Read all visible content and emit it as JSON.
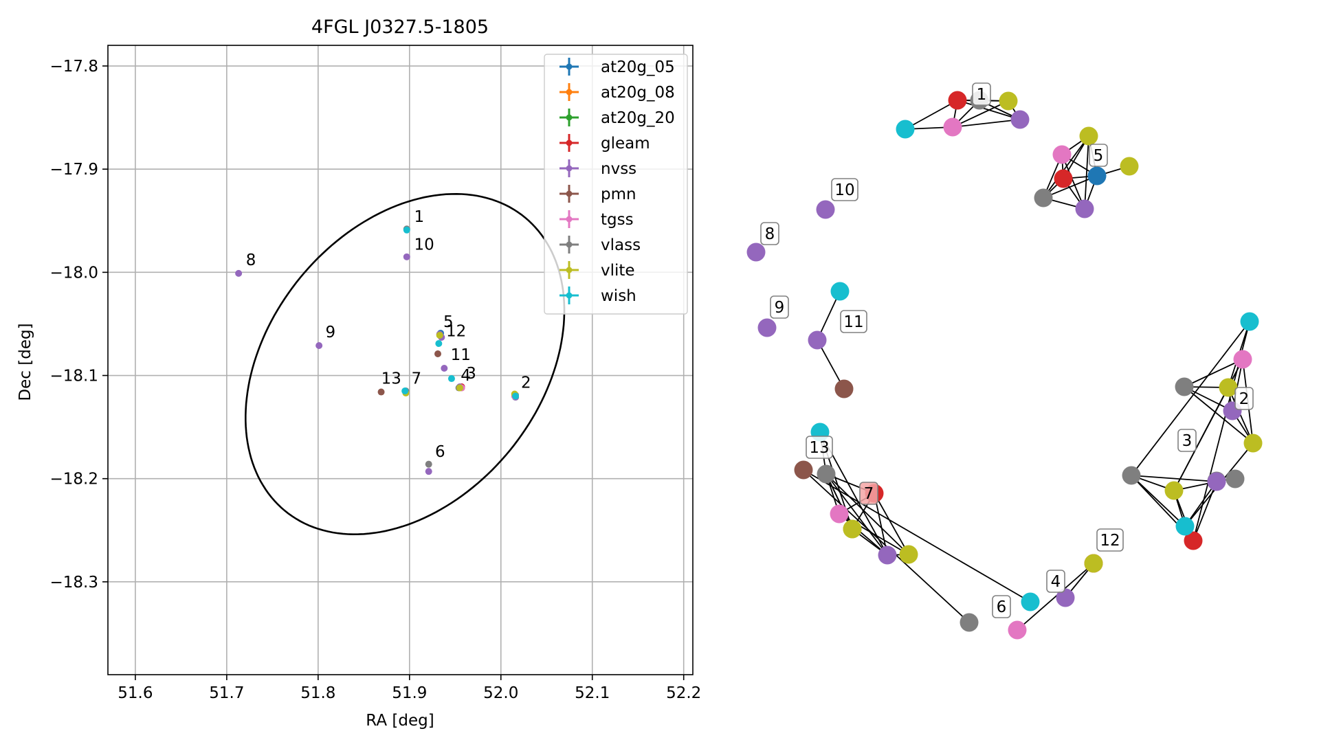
{
  "chart_data": {
    "type": "scatter",
    "title": "4FGL J0327.5-1805",
    "xlabel": "RA [deg]",
    "ylabel": "Dec [deg]",
    "xlim": [
      51.57,
      52.21
    ],
    "ylim": [
      -18.39,
      -17.78
    ],
    "xticks": [
      51.6,
      51.7,
      51.8,
      51.9,
      52.0,
      52.1,
      52.2
    ],
    "yticks": [
      -17.8,
      -17.9,
      -18.0,
      -18.1,
      -18.2,
      -18.3
    ],
    "xtick_labels": [
      "51.6",
      "51.7",
      "51.8",
      "51.9",
      "52.0",
      "52.1",
      "52.2"
    ],
    "ytick_labels": [
      "−17.8",
      "−17.9",
      "−18.0",
      "−18.1",
      "−18.2",
      "−18.3"
    ],
    "grid": true,
    "legend_position": "top-right",
    "ellipse": {
      "center": [
        51.895,
        -18.089
      ],
      "semi_major": 0.195,
      "semi_minor": 0.14,
      "rotation_deg": 40
    },
    "series": [
      {
        "name": "at20g_05",
        "color": "#1f77b4",
        "points": [
          [
            51.934,
            -18.059
          ]
        ]
      },
      {
        "name": "at20g_08",
        "color": "#ff7f0e",
        "points": [
          [
            51.957,
            -18.112
          ]
        ]
      },
      {
        "name": "at20g_20",
        "color": "#2ca02c",
        "points": [
          [
            52.016,
            -18.121
          ]
        ]
      },
      {
        "name": "gleam",
        "color": "#d62728",
        "points": [
          [
            51.957,
            -18.111
          ]
        ]
      },
      {
        "name": "nvss",
        "color": "#9467bd",
        "points": [
          [
            51.897,
            -17.985
          ],
          [
            52.016,
            -18.121
          ],
          [
            51.955,
            -18.111
          ],
          [
            51.935,
            -18.063
          ],
          [
            51.921,
            -18.193
          ],
          [
            51.896,
            -18.116
          ],
          [
            51.713,
            -18.001
          ],
          [
            51.801,
            -18.071
          ],
          [
            51.938,
            -18.093
          ],
          [
            51.933,
            -18.06
          ]
        ]
      },
      {
        "name": "pmn",
        "color": "#8c564b",
        "points": [
          [
            51.931,
            -18.079
          ],
          [
            51.869,
            -18.116
          ]
        ]
      },
      {
        "name": "tgss",
        "color": "#e377c2",
        "points": [
          [
            51.957,
            -18.112
          ],
          [
            52.015,
            -18.12
          ]
        ]
      },
      {
        "name": "vlass",
        "color": "#7f7f7f",
        "points": [
          [
            51.897,
            -17.958
          ],
          [
            51.921,
            -18.186
          ],
          [
            51.954,
            -18.112
          ],
          [
            52.016,
            -18.119
          ],
          [
            51.896,
            -18.115
          ]
        ]
      },
      {
        "name": "vlite",
        "color": "#bcbd22",
        "points": [
          [
            51.933,
            -18.061
          ],
          [
            51.955,
            -18.112
          ],
          [
            52.015,
            -18.118
          ],
          [
            51.896,
            -18.117
          ]
        ]
      },
      {
        "name": "wish",
        "color": "#17becf",
        "points": [
          [
            51.897,
            -17.959
          ],
          [
            51.932,
            -18.069
          ],
          [
            51.946,
            -18.103
          ],
          [
            51.895,
            -18.115
          ],
          [
            52.016,
            -18.12
          ]
        ]
      }
    ],
    "point_labels": [
      {
        "text": "1",
        "x": 51.905,
        "y": -17.951
      },
      {
        "text": "10",
        "x": 51.905,
        "y": -17.978
      },
      {
        "text": "8",
        "x": 51.721,
        "y": -17.993
      },
      {
        "text": "9",
        "x": 51.808,
        "y": -18.063
      },
      {
        "text": "5",
        "x": 51.937,
        "y": -18.053
      },
      {
        "text": "12",
        "x": 51.94,
        "y": -18.062
      },
      {
        "text": "11",
        "x": 51.945,
        "y": -18.085
      },
      {
        "text": "3",
        "x": 51.962,
        "y": -18.103
      },
      {
        "text": "4",
        "x": 51.956,
        "y": -18.105
      },
      {
        "text": "2",
        "x": 52.022,
        "y": -18.112
      },
      {
        "text": "13",
        "x": 51.869,
        "y": -18.108
      },
      {
        "text": "7",
        "x": 51.902,
        "y": -18.108
      },
      {
        "text": "6",
        "x": 51.928,
        "y": -18.179
      }
    ]
  },
  "network": {
    "nodes": [
      {
        "id": "n1",
        "series": "gleam",
        "color": "#d62728"
      },
      {
        "id": "n2",
        "series": "vlass",
        "color": "#7f7f7f"
      },
      {
        "id": "n3",
        "series": "vlite",
        "color": "#bcbd22"
      },
      {
        "id": "n4",
        "series": "nvss",
        "color": "#9467bd"
      },
      {
        "id": "n5",
        "series": "wish",
        "color": "#17becf"
      },
      {
        "id": "n6",
        "series": "tgss",
        "color": "#e377c2"
      },
      {
        "id": "n7",
        "series": "tgss",
        "color": "#e377c2"
      },
      {
        "id": "n8",
        "series": "vlite",
        "color": "#bcbd22"
      },
      {
        "id": "n9",
        "series": "at20g_05",
        "color": "#1f77b4"
      },
      {
        "id": "n10",
        "series": "vlite",
        "color": "#bcbd22"
      },
      {
        "id": "n11",
        "series": "gleam",
        "color": "#d62728"
      },
      {
        "id": "n12",
        "series": "vlass",
        "color": "#7f7f7f"
      },
      {
        "id": "n13",
        "series": "nvss",
        "color": "#9467bd"
      },
      {
        "id": "n14",
        "series": "nvss",
        "color": "#9467bd"
      },
      {
        "id": "n15",
        "series": "nvss",
        "color": "#9467bd"
      },
      {
        "id": "n16",
        "series": "nvss",
        "color": "#9467bd"
      },
      {
        "id": "n17",
        "series": "wish",
        "color": "#17becf"
      },
      {
        "id": "n18",
        "series": "nvss",
        "color": "#9467bd"
      },
      {
        "id": "n19",
        "series": "pmn",
        "color": "#8c564b"
      },
      {
        "id": "n20",
        "series": "wish",
        "color": "#17becf"
      },
      {
        "id": "n21",
        "series": "vlite",
        "color": "#bcbd22"
      },
      {
        "id": "n22",
        "series": "vlass",
        "color": "#7f7f7f"
      },
      {
        "id": "n23",
        "series": "vlite",
        "color": "#bcbd22"
      },
      {
        "id": "n24",
        "series": "tgss",
        "color": "#e377c2"
      },
      {
        "id": "n25",
        "series": "gleam",
        "color": "#d62728"
      },
      {
        "id": "n26",
        "series": "nvss",
        "color": "#9467bd"
      },
      {
        "id": "n27",
        "series": "vlite",
        "color": "#bcbd22"
      },
      {
        "id": "n28",
        "series": "vlass",
        "color": "#7f7f7f"
      },
      {
        "id": "n29",
        "series": "tgss",
        "color": "#e377c2"
      },
      {
        "id": "n30",
        "series": "wish",
        "color": "#17becf"
      },
      {
        "id": "n31",
        "series": "gleam",
        "color": "#d62728"
      },
      {
        "id": "n32",
        "series": "nvss",
        "color": "#9467bd"
      },
      {
        "id": "n33",
        "series": "vlite",
        "color": "#bcbd22"
      },
      {
        "id": "n34",
        "series": "wish",
        "color": "#17becf"
      },
      {
        "id": "n35",
        "series": "pmn",
        "color": "#8c564b"
      },
      {
        "id": "n36",
        "series": "vlass",
        "color": "#7f7f7f"
      },
      {
        "id": "n37",
        "series": "tgss",
        "color": "#e377c2"
      },
      {
        "id": "n38",
        "series": "vlite",
        "color": "#bcbd22"
      },
      {
        "id": "n39",
        "series": "vlass",
        "color": "#7f7f7f"
      },
      {
        "id": "n40",
        "series": "nvss",
        "color": "#9467bd"
      },
      {
        "id": "n41",
        "series": "vlite",
        "color": "#bcbd22"
      },
      {
        "id": "n42",
        "series": "gleam",
        "color": "#d62728"
      },
      {
        "id": "n43",
        "series": "wish",
        "color": "#17becf"
      },
      {
        "id": "n44",
        "series": "vlite",
        "color": "#bcbd22"
      },
      {
        "id": "n45",
        "series": "vlass",
        "color": "#7f7f7f"
      },
      {
        "id": "n46",
        "series": "vlass",
        "color": "#7f7f7f"
      },
      {
        "id": "n47",
        "series": "nvss",
        "color": "#9467bd"
      }
    ],
    "edges": [
      [
        "n5",
        "n1"
      ],
      [
        "n5",
        "n6"
      ],
      [
        "n1",
        "n2"
      ],
      [
        "n1",
        "n3"
      ],
      [
        "n1",
        "n4"
      ],
      [
        "n1",
        "n6"
      ],
      [
        "n6",
        "n2"
      ],
      [
        "n6",
        "n3"
      ],
      [
        "n6",
        "n4"
      ],
      [
        "n2",
        "n4"
      ],
      [
        "n2",
        "n3"
      ],
      [
        "n3",
        "n4"
      ],
      [
        "n7",
        "n8"
      ],
      [
        "n7",
        "n11"
      ],
      [
        "n7",
        "n12"
      ],
      [
        "n7",
        "n13"
      ],
      [
        "n7",
        "n9"
      ],
      [
        "n8",
        "n9"
      ],
      [
        "n8",
        "n11"
      ],
      [
        "n8",
        "n13"
      ],
      [
        "n11",
        "n12"
      ],
      [
        "n11",
        "n13"
      ],
      [
        "n11",
        "n9"
      ],
      [
        "n12",
        "n13"
      ],
      [
        "n12",
        "n9"
      ],
      [
        "n13",
        "n9"
      ],
      [
        "n10",
        "n9"
      ],
      [
        "n12",
        "n8"
      ],
      [
        "n17",
        "n18"
      ],
      [
        "n18",
        "n19"
      ],
      [
        "n20",
        "n22"
      ],
      [
        "n20",
        "n23"
      ],
      [
        "n20",
        "n26"
      ],
      [
        "n22",
        "n23"
      ],
      [
        "n22",
        "n24"
      ],
      [
        "n22",
        "n25"
      ],
      [
        "n22",
        "n26"
      ],
      [
        "n22",
        "n27"
      ],
      [
        "n24",
        "n27"
      ],
      [
        "n24",
        "n25"
      ],
      [
        "n24",
        "n26"
      ],
      [
        "n23",
        "n25"
      ],
      [
        "n23",
        "n26"
      ],
      [
        "n25",
        "n26"
      ],
      [
        "n25",
        "n27"
      ],
      [
        "n26",
        "n27"
      ],
      [
        "n21",
        "n22"
      ],
      [
        "n28",
        "n35"
      ],
      [
        "n35",
        "n30"
      ],
      [
        "n34",
        "n38"
      ],
      [
        "n34",
        "n39"
      ],
      [
        "n34",
        "n42"
      ],
      [
        "n39",
        "n41"
      ],
      [
        "n39",
        "n43"
      ],
      [
        "n39",
        "n42"
      ],
      [
        "n38",
        "n37"
      ],
      [
        "n38",
        "n41"
      ],
      [
        "n38",
        "n40"
      ],
      [
        "n38",
        "n36"
      ],
      [
        "n38",
        "n44"
      ],
      [
        "n37",
        "n40"
      ],
      [
        "n37",
        "n41"
      ],
      [
        "n37",
        "n44"
      ],
      [
        "n37",
        "n36"
      ],
      [
        "n36",
        "n40"
      ],
      [
        "n36",
        "n44"
      ],
      [
        "n40",
        "n44"
      ],
      [
        "n42",
        "n43"
      ],
      [
        "n42",
        "n41"
      ],
      [
        "n42",
        "n47"
      ],
      [
        "n43",
        "n47"
      ],
      [
        "n41",
        "n47"
      ],
      [
        "n41",
        "n43"
      ],
      [
        "n43",
        "n44"
      ],
      [
        "n39",
        "n47"
      ],
      [
        "n45",
        "n46"
      ],
      [
        "n29",
        "n31"
      ],
      [
        "n32",
        "n33"
      ]
    ],
    "labels": [
      {
        "text": "1"
      },
      {
        "text": "5"
      },
      {
        "text": "10"
      },
      {
        "text": "8"
      },
      {
        "text": "9"
      },
      {
        "text": "11"
      },
      {
        "text": "13"
      },
      {
        "text": "7"
      },
      {
        "text": "2"
      },
      {
        "text": "3"
      },
      {
        "text": "12"
      },
      {
        "text": "4"
      },
      {
        "text": "6"
      }
    ]
  }
}
